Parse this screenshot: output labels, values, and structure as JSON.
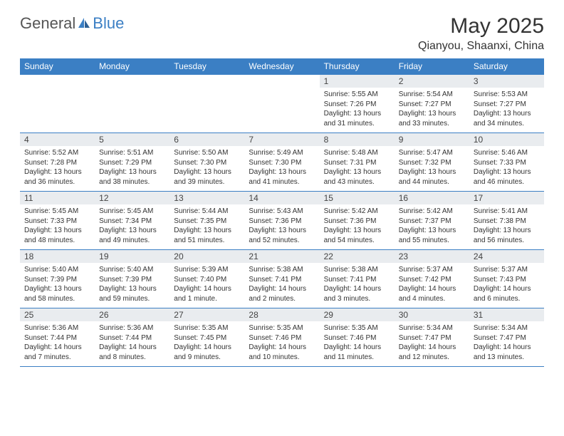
{
  "logo": {
    "text1": "General",
    "text2": "Blue"
  },
  "title": "May 2025",
  "location": "Qianyou, Shaanxi, China",
  "colors": {
    "header_bar": "#3b7fc4",
    "daynum_bg": "#e9ecef",
    "text": "#333333",
    "background": "#ffffff"
  },
  "daynames": [
    "Sunday",
    "Monday",
    "Tuesday",
    "Wednesday",
    "Thursday",
    "Friday",
    "Saturday"
  ],
  "weeks": [
    [
      {
        "empty": true
      },
      {
        "empty": true
      },
      {
        "empty": true
      },
      {
        "empty": true
      },
      {
        "num": "1",
        "sunrise": "Sunrise: 5:55 AM",
        "sunset": "Sunset: 7:26 PM",
        "daylight": "Daylight: 13 hours and 31 minutes."
      },
      {
        "num": "2",
        "sunrise": "Sunrise: 5:54 AM",
        "sunset": "Sunset: 7:27 PM",
        "daylight": "Daylight: 13 hours and 33 minutes."
      },
      {
        "num": "3",
        "sunrise": "Sunrise: 5:53 AM",
        "sunset": "Sunset: 7:27 PM",
        "daylight": "Daylight: 13 hours and 34 minutes."
      }
    ],
    [
      {
        "num": "4",
        "sunrise": "Sunrise: 5:52 AM",
        "sunset": "Sunset: 7:28 PM",
        "daylight": "Daylight: 13 hours and 36 minutes."
      },
      {
        "num": "5",
        "sunrise": "Sunrise: 5:51 AM",
        "sunset": "Sunset: 7:29 PM",
        "daylight": "Daylight: 13 hours and 38 minutes."
      },
      {
        "num": "6",
        "sunrise": "Sunrise: 5:50 AM",
        "sunset": "Sunset: 7:30 PM",
        "daylight": "Daylight: 13 hours and 39 minutes."
      },
      {
        "num": "7",
        "sunrise": "Sunrise: 5:49 AM",
        "sunset": "Sunset: 7:30 PM",
        "daylight": "Daylight: 13 hours and 41 minutes."
      },
      {
        "num": "8",
        "sunrise": "Sunrise: 5:48 AM",
        "sunset": "Sunset: 7:31 PM",
        "daylight": "Daylight: 13 hours and 43 minutes."
      },
      {
        "num": "9",
        "sunrise": "Sunrise: 5:47 AM",
        "sunset": "Sunset: 7:32 PM",
        "daylight": "Daylight: 13 hours and 44 minutes."
      },
      {
        "num": "10",
        "sunrise": "Sunrise: 5:46 AM",
        "sunset": "Sunset: 7:33 PM",
        "daylight": "Daylight: 13 hours and 46 minutes."
      }
    ],
    [
      {
        "num": "11",
        "sunrise": "Sunrise: 5:45 AM",
        "sunset": "Sunset: 7:33 PM",
        "daylight": "Daylight: 13 hours and 48 minutes."
      },
      {
        "num": "12",
        "sunrise": "Sunrise: 5:45 AM",
        "sunset": "Sunset: 7:34 PM",
        "daylight": "Daylight: 13 hours and 49 minutes."
      },
      {
        "num": "13",
        "sunrise": "Sunrise: 5:44 AM",
        "sunset": "Sunset: 7:35 PM",
        "daylight": "Daylight: 13 hours and 51 minutes."
      },
      {
        "num": "14",
        "sunrise": "Sunrise: 5:43 AM",
        "sunset": "Sunset: 7:36 PM",
        "daylight": "Daylight: 13 hours and 52 minutes."
      },
      {
        "num": "15",
        "sunrise": "Sunrise: 5:42 AM",
        "sunset": "Sunset: 7:36 PM",
        "daylight": "Daylight: 13 hours and 54 minutes."
      },
      {
        "num": "16",
        "sunrise": "Sunrise: 5:42 AM",
        "sunset": "Sunset: 7:37 PM",
        "daylight": "Daylight: 13 hours and 55 minutes."
      },
      {
        "num": "17",
        "sunrise": "Sunrise: 5:41 AM",
        "sunset": "Sunset: 7:38 PM",
        "daylight": "Daylight: 13 hours and 56 minutes."
      }
    ],
    [
      {
        "num": "18",
        "sunrise": "Sunrise: 5:40 AM",
        "sunset": "Sunset: 7:39 PM",
        "daylight": "Daylight: 13 hours and 58 minutes."
      },
      {
        "num": "19",
        "sunrise": "Sunrise: 5:40 AM",
        "sunset": "Sunset: 7:39 PM",
        "daylight": "Daylight: 13 hours and 59 minutes."
      },
      {
        "num": "20",
        "sunrise": "Sunrise: 5:39 AM",
        "sunset": "Sunset: 7:40 PM",
        "daylight": "Daylight: 14 hours and 1 minute."
      },
      {
        "num": "21",
        "sunrise": "Sunrise: 5:38 AM",
        "sunset": "Sunset: 7:41 PM",
        "daylight": "Daylight: 14 hours and 2 minutes."
      },
      {
        "num": "22",
        "sunrise": "Sunrise: 5:38 AM",
        "sunset": "Sunset: 7:41 PM",
        "daylight": "Daylight: 14 hours and 3 minutes."
      },
      {
        "num": "23",
        "sunrise": "Sunrise: 5:37 AM",
        "sunset": "Sunset: 7:42 PM",
        "daylight": "Daylight: 14 hours and 4 minutes."
      },
      {
        "num": "24",
        "sunrise": "Sunrise: 5:37 AM",
        "sunset": "Sunset: 7:43 PM",
        "daylight": "Daylight: 14 hours and 6 minutes."
      }
    ],
    [
      {
        "num": "25",
        "sunrise": "Sunrise: 5:36 AM",
        "sunset": "Sunset: 7:44 PM",
        "daylight": "Daylight: 14 hours and 7 minutes."
      },
      {
        "num": "26",
        "sunrise": "Sunrise: 5:36 AM",
        "sunset": "Sunset: 7:44 PM",
        "daylight": "Daylight: 14 hours and 8 minutes."
      },
      {
        "num": "27",
        "sunrise": "Sunrise: 5:35 AM",
        "sunset": "Sunset: 7:45 PM",
        "daylight": "Daylight: 14 hours and 9 minutes."
      },
      {
        "num": "28",
        "sunrise": "Sunrise: 5:35 AM",
        "sunset": "Sunset: 7:46 PM",
        "daylight": "Daylight: 14 hours and 10 minutes."
      },
      {
        "num": "29",
        "sunrise": "Sunrise: 5:35 AM",
        "sunset": "Sunset: 7:46 PM",
        "daylight": "Daylight: 14 hours and 11 minutes."
      },
      {
        "num": "30",
        "sunrise": "Sunrise: 5:34 AM",
        "sunset": "Sunset: 7:47 PM",
        "daylight": "Daylight: 14 hours and 12 minutes."
      },
      {
        "num": "31",
        "sunrise": "Sunrise: 5:34 AM",
        "sunset": "Sunset: 7:47 PM",
        "daylight": "Daylight: 14 hours and 13 minutes."
      }
    ]
  ]
}
